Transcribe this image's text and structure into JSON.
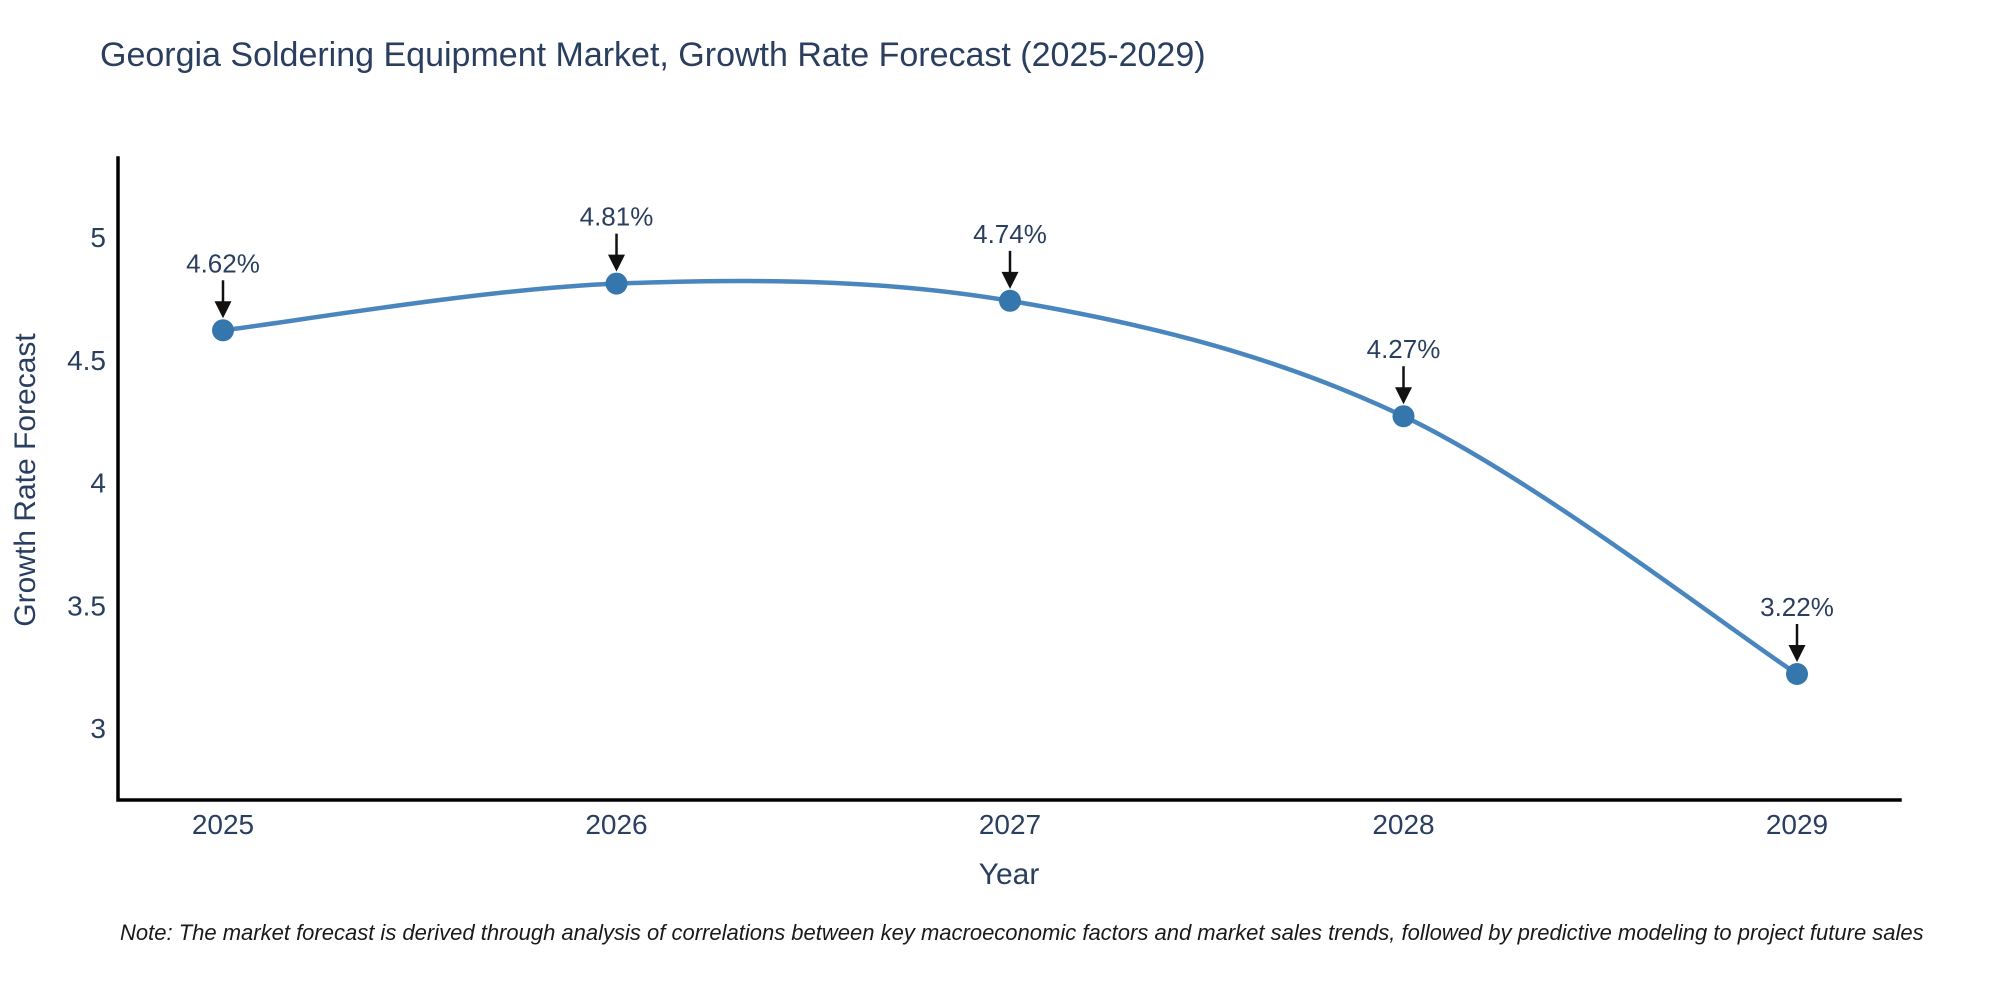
{
  "chart_data": {
    "type": "line",
    "title": "Georgia Soldering Equipment Market, Growth Rate Forecast (2025-2029)",
    "xlabel": "Year",
    "ylabel": "Growth Rate Forecast",
    "x": [
      2025,
      2026,
      2027,
      2028,
      2029
    ],
    "values": [
      4.62,
      4.81,
      4.74,
      4.27,
      3.22
    ],
    "point_labels": [
      "4.62%",
      "4.81%",
      "4.74%",
      "4.27%",
      "3.22%"
    ],
    "x_tick_labels": [
      "2025",
      "2026",
      "2027",
      "2028",
      "2029"
    ],
    "y_ticks": [
      3,
      3.5,
      4,
      4.5,
      5
    ],
    "y_tick_labels": [
      "3",
      "3.5",
      "4",
      "4.5",
      "5"
    ],
    "ylim": [
      2.71,
      5.32
    ],
    "grid": false,
    "legend": "none",
    "line_shape": "spline",
    "annotation_style": "value labels with down arrows onto markers",
    "colors": {
      "line": "#4a86be",
      "marker": "#3576ad",
      "axis": "#000000",
      "tick_text": "#2a3f5f",
      "annotation_text": "#2a3f5f",
      "arrow": "#111111"
    }
  },
  "note": "Note: The market forecast is derived through analysis of correlations between key macroeconomic factors and market sales trends, followed by predictive modeling to project future sales"
}
